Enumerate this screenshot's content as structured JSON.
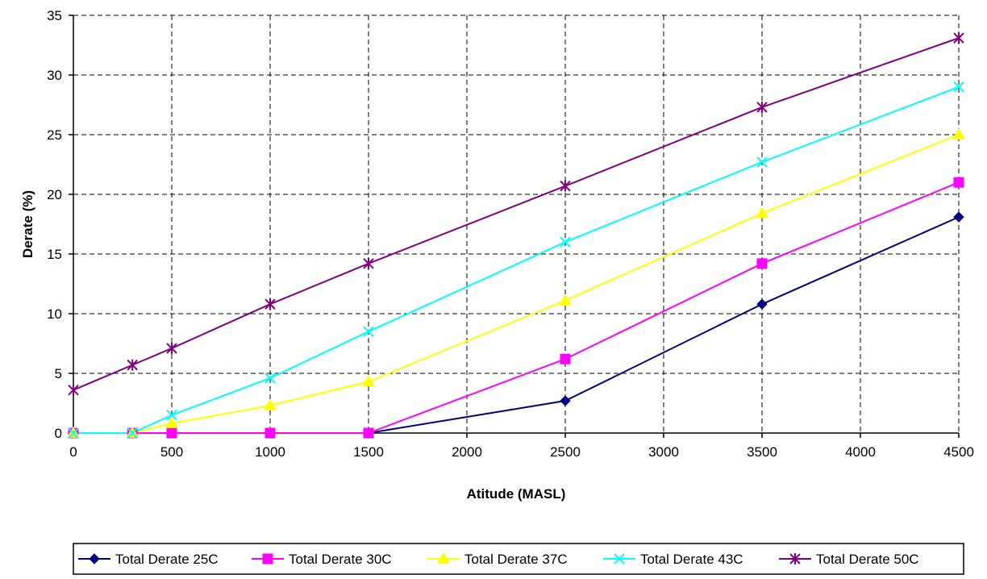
{
  "chart_data": {
    "type": "line",
    "title": "",
    "xlabel": "Atitude (MASL)",
    "ylabel": "Derate (%)",
    "xlim": [
      0,
      4500
    ],
    "ylim": [
      0,
      35
    ],
    "xticks": [
      0,
      500,
      1000,
      1500,
      2000,
      2500,
      3000,
      3500,
      4000,
      4500
    ],
    "yticks": [
      0,
      5,
      10,
      15,
      20,
      25,
      30,
      35
    ],
    "grid": true,
    "legend_position": "bottom",
    "x": [
      0,
      300,
      500,
      1000,
      1500,
      2500,
      3500,
      4500
    ],
    "series": [
      {
        "name": "Total Derate 25C",
        "color": "#000080",
        "marker": "diamond",
        "x": [
          0,
          300,
          1500,
          2500,
          3500,
          4500
        ],
        "values": [
          0,
          0,
          0,
          2.7,
          10.8,
          18.1
        ]
      },
      {
        "name": "Total Derate 30C",
        "color": "#FF00FF",
        "marker": "square",
        "x": [
          0,
          300,
          500,
          1000,
          1500,
          2500,
          3500,
          4500
        ],
        "values": [
          0,
          0,
          0,
          0,
          0,
          6.2,
          14.2,
          21.0
        ]
      },
      {
        "name": "Total Derate 37C",
        "color": "#FFFF00",
        "marker": "triangle",
        "x": [
          0,
          300,
          500,
          1000,
          1500,
          2500,
          3500,
          4500
        ],
        "values": [
          0,
          0,
          0.8,
          2.3,
          4.3,
          11.1,
          18.4,
          25.0
        ]
      },
      {
        "name": "Total Derate 43C",
        "color": "#00FFFF",
        "marker": "x",
        "x": [
          0,
          300,
          500,
          1000,
          1500,
          2500,
          3500,
          4500
        ],
        "values": [
          0,
          0,
          1.5,
          4.6,
          8.5,
          16.0,
          22.7,
          29.0
        ]
      },
      {
        "name": "Total Derate 50C",
        "color": "#800080",
        "marker": "star",
        "x": [
          0,
          300,
          500,
          1000,
          1500,
          2500,
          3500,
          4500
        ],
        "values": [
          3.6,
          5.7,
          7.1,
          10.8,
          14.2,
          20.7,
          27.3,
          33.1
        ]
      }
    ]
  }
}
